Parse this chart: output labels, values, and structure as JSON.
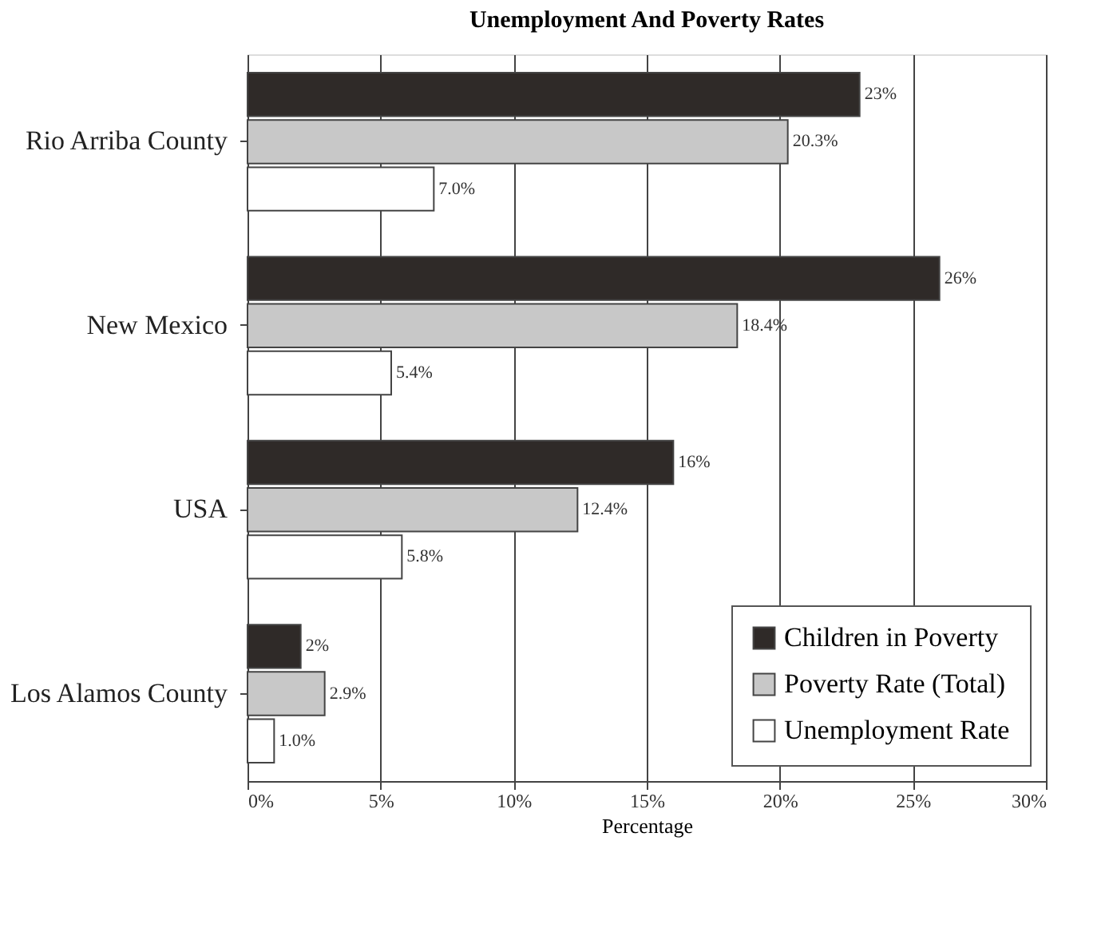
{
  "chart_data": {
    "type": "bar",
    "orientation": "horizontal",
    "title": "Unemployment And Poverty Rates",
    "xlabel": "Percentage",
    "categories": [
      "Rio Arriba County",
      "New Mexico",
      "USA",
      "Los Alamos County"
    ],
    "series": [
      {
        "name": "Children in Poverty",
        "color": "#2f2a28",
        "values": [
          23,
          26,
          16,
          2
        ],
        "value_labels": [
          "23%",
          "26%",
          "16%",
          "2%"
        ]
      },
      {
        "name": "Poverty Rate (Total)",
        "color": "#c8c8c8",
        "values": [
          20.3,
          18.4,
          12.4,
          2.9
        ],
        "value_labels": [
          "20.3%",
          "18.4%",
          "12.4%",
          "2.9%"
        ]
      },
      {
        "name": "Unemployment Rate",
        "color": "#ffffff",
        "values": [
          7.0,
          5.4,
          5.8,
          1.0
        ],
        "value_labels": [
          "7.0%",
          "5.4%",
          "5.8%",
          "1.0%"
        ]
      }
    ],
    "xlim": [
      0,
      30
    ],
    "xticks": [
      {
        "value": 0,
        "label": "0%"
      },
      {
        "value": 5,
        "label": "5%"
      },
      {
        "value": 10,
        "label": "10%"
      },
      {
        "value": 15,
        "label": "15%"
      },
      {
        "value": 20,
        "label": "20%"
      },
      {
        "value": 25,
        "label": "25%"
      },
      {
        "value": 30,
        "label": "30%"
      }
    ],
    "grid": "x",
    "legend": "bottom right"
  }
}
